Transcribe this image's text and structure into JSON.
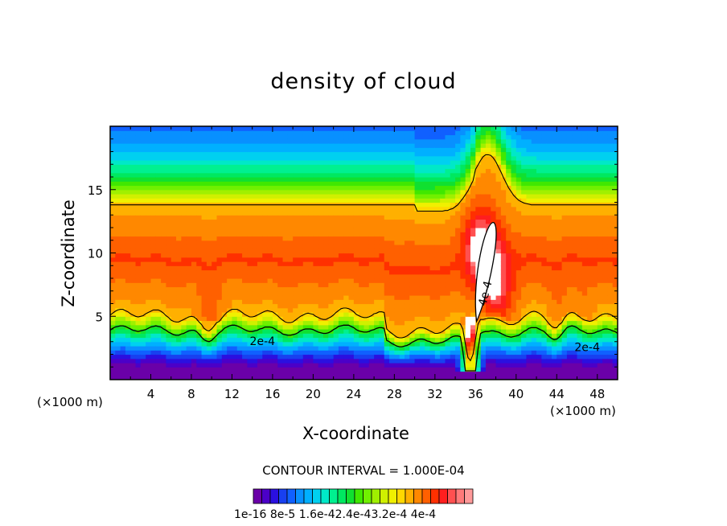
{
  "title": "density of cloud",
  "xlabel": "X-coordinate",
  "ylabel": "Z-coordinate",
  "x_unit_left": "(×1000 m)",
  "x_unit_right": "(×1000 m)",
  "contour_interval_text": "CONTOUR INTERVAL = 1.000E-04",
  "colorbar_labels_text": "1e-16 8e-5 1.6e-42.4e-43.2e-4 4e-4",
  "chart_data": {
    "type": "heatmap",
    "title": "density of cloud",
    "xlabel": "X-coordinate",
    "ylabel": "Z-coordinate",
    "x_unit": "(×1000 m)",
    "xlim": [
      0,
      50
    ],
    "ylim": [
      0,
      20
    ],
    "x_ticks": [
      4,
      8,
      12,
      16,
      20,
      24,
      28,
      32,
      36,
      40,
      44,
      48
    ],
    "y_ticks": [
      5,
      10,
      15
    ],
    "contour_interval": "1.000E-04",
    "contour_labels": [
      {
        "text": "2e-4",
        "x": 15,
        "z": 3
      },
      {
        "text": "2e-4",
        "x": 47,
        "z": 2.5
      },
      {
        "text": "4e-4",
        "x": 37,
        "z": 6.8
      }
    ],
    "colorbar": {
      "labels": [
        "1e-16",
        "8e-5",
        "1.6e-4",
        "2.4e-4",
        "3.2e-4",
        "4e-4"
      ],
      "colors": [
        "#6a00a8",
        "#4b00c8",
        "#2a10e0",
        "#1840f0",
        "#1060ff",
        "#0890ff",
        "#00b0ff",
        "#00d0f0",
        "#00e8c8",
        "#00f090",
        "#00e860",
        "#10e030",
        "#40e800",
        "#70f000",
        "#a0f000",
        "#d0f000",
        "#f0f000",
        "#ffd800",
        "#ffb000",
        "#ff8800",
        "#ff6000",
        "#ff3000",
        "#ff1e1e",
        "#ff5050",
        "#ff7a7a",
        "#ff9a9a"
      ]
    },
    "density_scale": [
      0,
      5e-05,
      0.0001,
      0.00015,
      0.0002,
      0.00025,
      0.0003,
      0.00035,
      0.0004
    ],
    "colors": {
      "lowest": "#6a00a8",
      "blue": "#1060ff",
      "cyan": "#00d0f0",
      "green": "#10e030",
      "yellow": "#f0f000",
      "orange": "#ff8800",
      "red": "#ff1e1e",
      "pink": "#ff8080",
      "peak": "#ffffff"
    }
  }
}
